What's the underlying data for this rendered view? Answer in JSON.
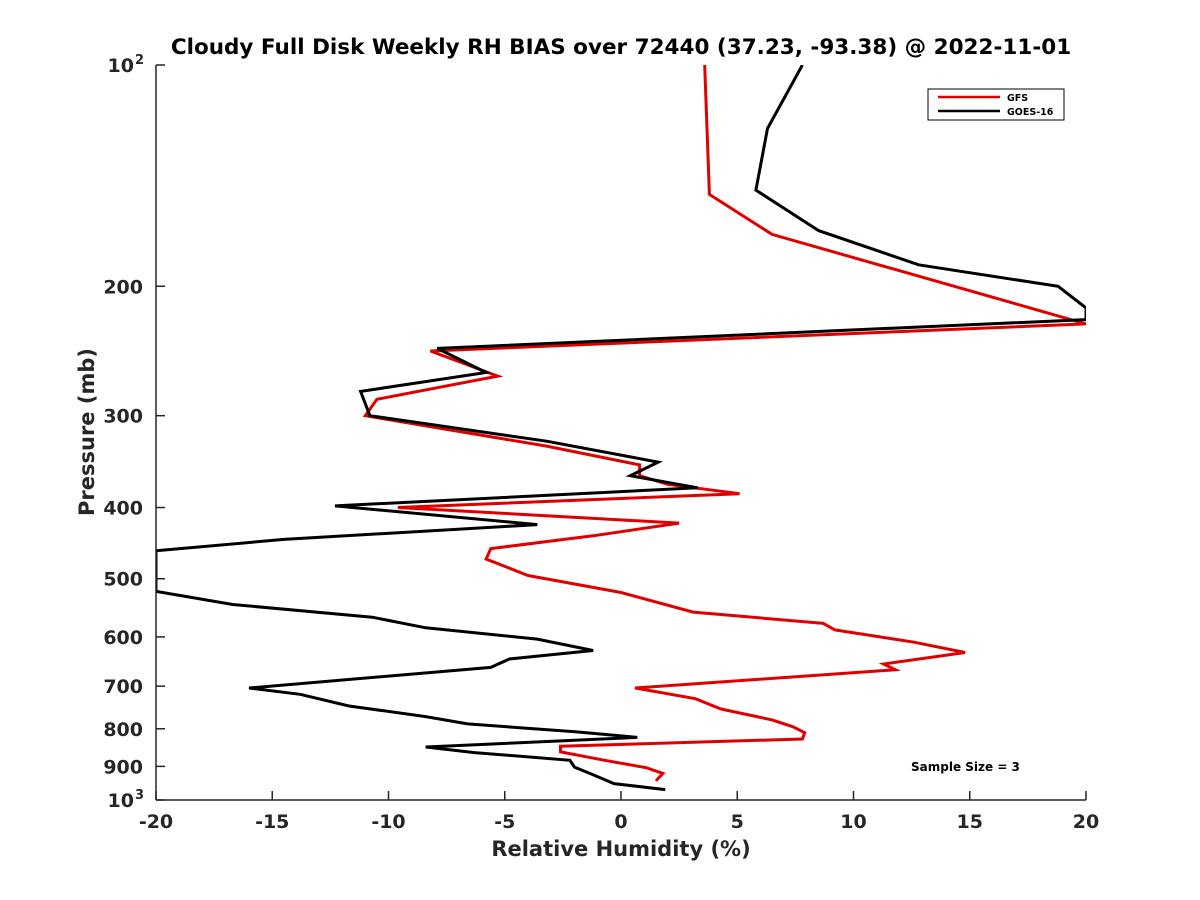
{
  "chart_data": {
    "type": "line",
    "title": "Cloudy Full Disk Weekly RH BIAS over 72440 (37.23, -93.38) @ 2022-11-01",
    "xlabel": "Relative Humidity (%)",
    "ylabel": "Pressure (mb)",
    "xlim": [
      -20,
      20
    ],
    "ylim": [
      1000,
      100
    ],
    "yscale": "log",
    "y_reversed": true,
    "grid": false,
    "legend_position": "top-right",
    "x_ticks": [
      -20,
      -15,
      -10,
      -5,
      0,
      5,
      10,
      15,
      20
    ],
    "x_tick_labels": [
      "-20",
      "-15",
      "-10",
      "-5",
      "0",
      "5",
      "10",
      "15",
      "20"
    ],
    "y_ticks": [
      {
        "value": 100,
        "label": "10",
        "exp": "2"
      },
      {
        "value": 200,
        "label": "200",
        "exp": ""
      },
      {
        "value": 300,
        "label": "300",
        "exp": ""
      },
      {
        "value": 400,
        "label": "400",
        "exp": ""
      },
      {
        "value": 500,
        "label": "500",
        "exp": ""
      },
      {
        "value": 600,
        "label": "600",
        "exp": ""
      },
      {
        "value": 700,
        "label": "700",
        "exp": ""
      },
      {
        "value": 800,
        "label": "800",
        "exp": ""
      },
      {
        "value": 900,
        "label": "900",
        "exp": ""
      },
      {
        "value": 1000,
        "label": "10",
        "exp": "3"
      }
    ],
    "annotation": "Sample Size = 3",
    "series": [
      {
        "name": "GFS",
        "color": "#e00000",
        "points": [
          [
            3.6,
            100
          ],
          [
            3.8,
            150
          ],
          [
            6.5,
            170
          ],
          [
            20,
            225
          ],
          [
            -8.2,
            245
          ],
          [
            -5.3,
            265
          ],
          [
            -10.5,
            285
          ],
          [
            -11,
            300
          ],
          [
            -3.2,
            330
          ],
          [
            0.8,
            350
          ],
          [
            0.8,
            362
          ],
          [
            2.0,
            372
          ],
          [
            5.1,
            383
          ],
          [
            -9.6,
            400
          ],
          [
            2.5,
            420
          ],
          [
            -1.2,
            437
          ],
          [
            -5.6,
            455
          ],
          [
            -5.8,
            470
          ],
          [
            -4.0,
            495
          ],
          [
            0,
            522
          ],
          [
            3.1,
            555
          ],
          [
            8.7,
            575
          ],
          [
            9.2,
            587
          ],
          [
            12.6,
            610
          ],
          [
            14.8,
            630
          ],
          [
            11.3,
            653
          ],
          [
            11.8,
            665
          ],
          [
            0.6,
            704
          ],
          [
            3.2,
            728
          ],
          [
            4.3,
            752
          ],
          [
            6.5,
            778
          ],
          [
            7.4,
            795
          ],
          [
            7.9,
            810
          ],
          [
            7.8,
            826
          ],
          [
            -2.6,
            845
          ],
          [
            -2.6,
            860
          ],
          [
            -0.7,
            883
          ],
          [
            1.1,
            904
          ],
          [
            1.8,
            920
          ],
          [
            1.5,
            942
          ]
        ]
      },
      {
        "name": "GOES-16",
        "color": "#000000",
        "points": [
          [
            7.8,
            100
          ],
          [
            6.3,
            122
          ],
          [
            5.8,
            148
          ],
          [
            8.5,
            168
          ],
          [
            12.8,
            187
          ],
          [
            18.8,
            200
          ],
          [
            20,
            214
          ],
          [
            20,
            222
          ],
          [
            -7.9,
            243
          ],
          [
            -5.8,
            262
          ],
          [
            -11.2,
            278
          ],
          [
            -10.8,
            300
          ],
          [
            -3.2,
            325
          ],
          [
            1.6,
            347
          ],
          [
            0.4,
            362
          ],
          [
            3.3,
            376
          ],
          [
            -12.3,
            398
          ],
          [
            -3.6,
            422
          ],
          [
            -14.5,
            442
          ],
          [
            -20,
            458
          ],
          [
            -20,
            520
          ],
          [
            -16.7,
            542
          ],
          [
            -10.7,
            564
          ],
          [
            -8.4,
            583
          ],
          [
            -3.6,
            604
          ],
          [
            -1.2,
            626
          ],
          [
            -4.8,
            643
          ],
          [
            -5.6,
            660
          ],
          [
            -16,
            704
          ],
          [
            -13.8,
            718
          ],
          [
            -11.7,
            745
          ],
          [
            -8.4,
            770
          ],
          [
            -6.6,
            788
          ],
          [
            -1.9,
            808
          ],
          [
            0.7,
            822
          ],
          [
            -8.4,
            847
          ],
          [
            -6.3,
            862
          ],
          [
            -2.2,
            883
          ],
          [
            -2.0,
            902
          ],
          [
            -1.2,
            924
          ],
          [
            -0.3,
            950
          ],
          [
            1.9,
            968
          ]
        ]
      }
    ]
  }
}
